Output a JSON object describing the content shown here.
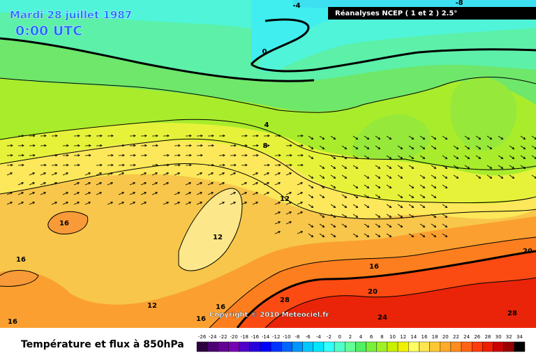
{
  "header": {
    "date": "Mardi 28 juillet 1987",
    "time": "0:00 UTC",
    "source": "Réanalyses NCEP ( 1 et 2 ) 2.5°"
  },
  "copyright": "Copyright © 2010 Meteociel.fr",
  "footer": {
    "title": "Température et flux à 850hPa"
  },
  "contour_labels": [
    -4,
    -8,
    0,
    4,
    8,
    12,
    16,
    12,
    16,
    16,
    20,
    28,
    24,
    16,
    12,
    16,
    16,
    20,
    28
  ],
  "legend": {
    "ticks": [
      -26,
      -24,
      -22,
      -20,
      -18,
      -16,
      -14,
      -12,
      -10,
      -8,
      -6,
      -4,
      -2,
      0,
      2,
      4,
      6,
      8,
      10,
      12,
      14,
      16,
      18,
      20,
      22,
      24,
      26,
      28,
      30,
      32,
      34
    ],
    "colors": [
      "#2d0040",
      "#4b0073",
      "#640096",
      "#7800b4",
      "#5000c8",
      "#2800dc",
      "#0000ff",
      "#0032ff",
      "#0064ff",
      "#0096ff",
      "#00c8ff",
      "#00e6ff",
      "#32ffff",
      "#50ffc8",
      "#64ff96",
      "#50f064",
      "#78f03c",
      "#a0f028",
      "#c8f000",
      "#f0f000",
      "#ffff64",
      "#ffe650",
      "#ffc832",
      "#ffaa28",
      "#ff8c1e",
      "#ff6414",
      "#ff3c0a",
      "#f01e00",
      "#c80000",
      "#960000",
      "#000000"
    ]
  }
}
